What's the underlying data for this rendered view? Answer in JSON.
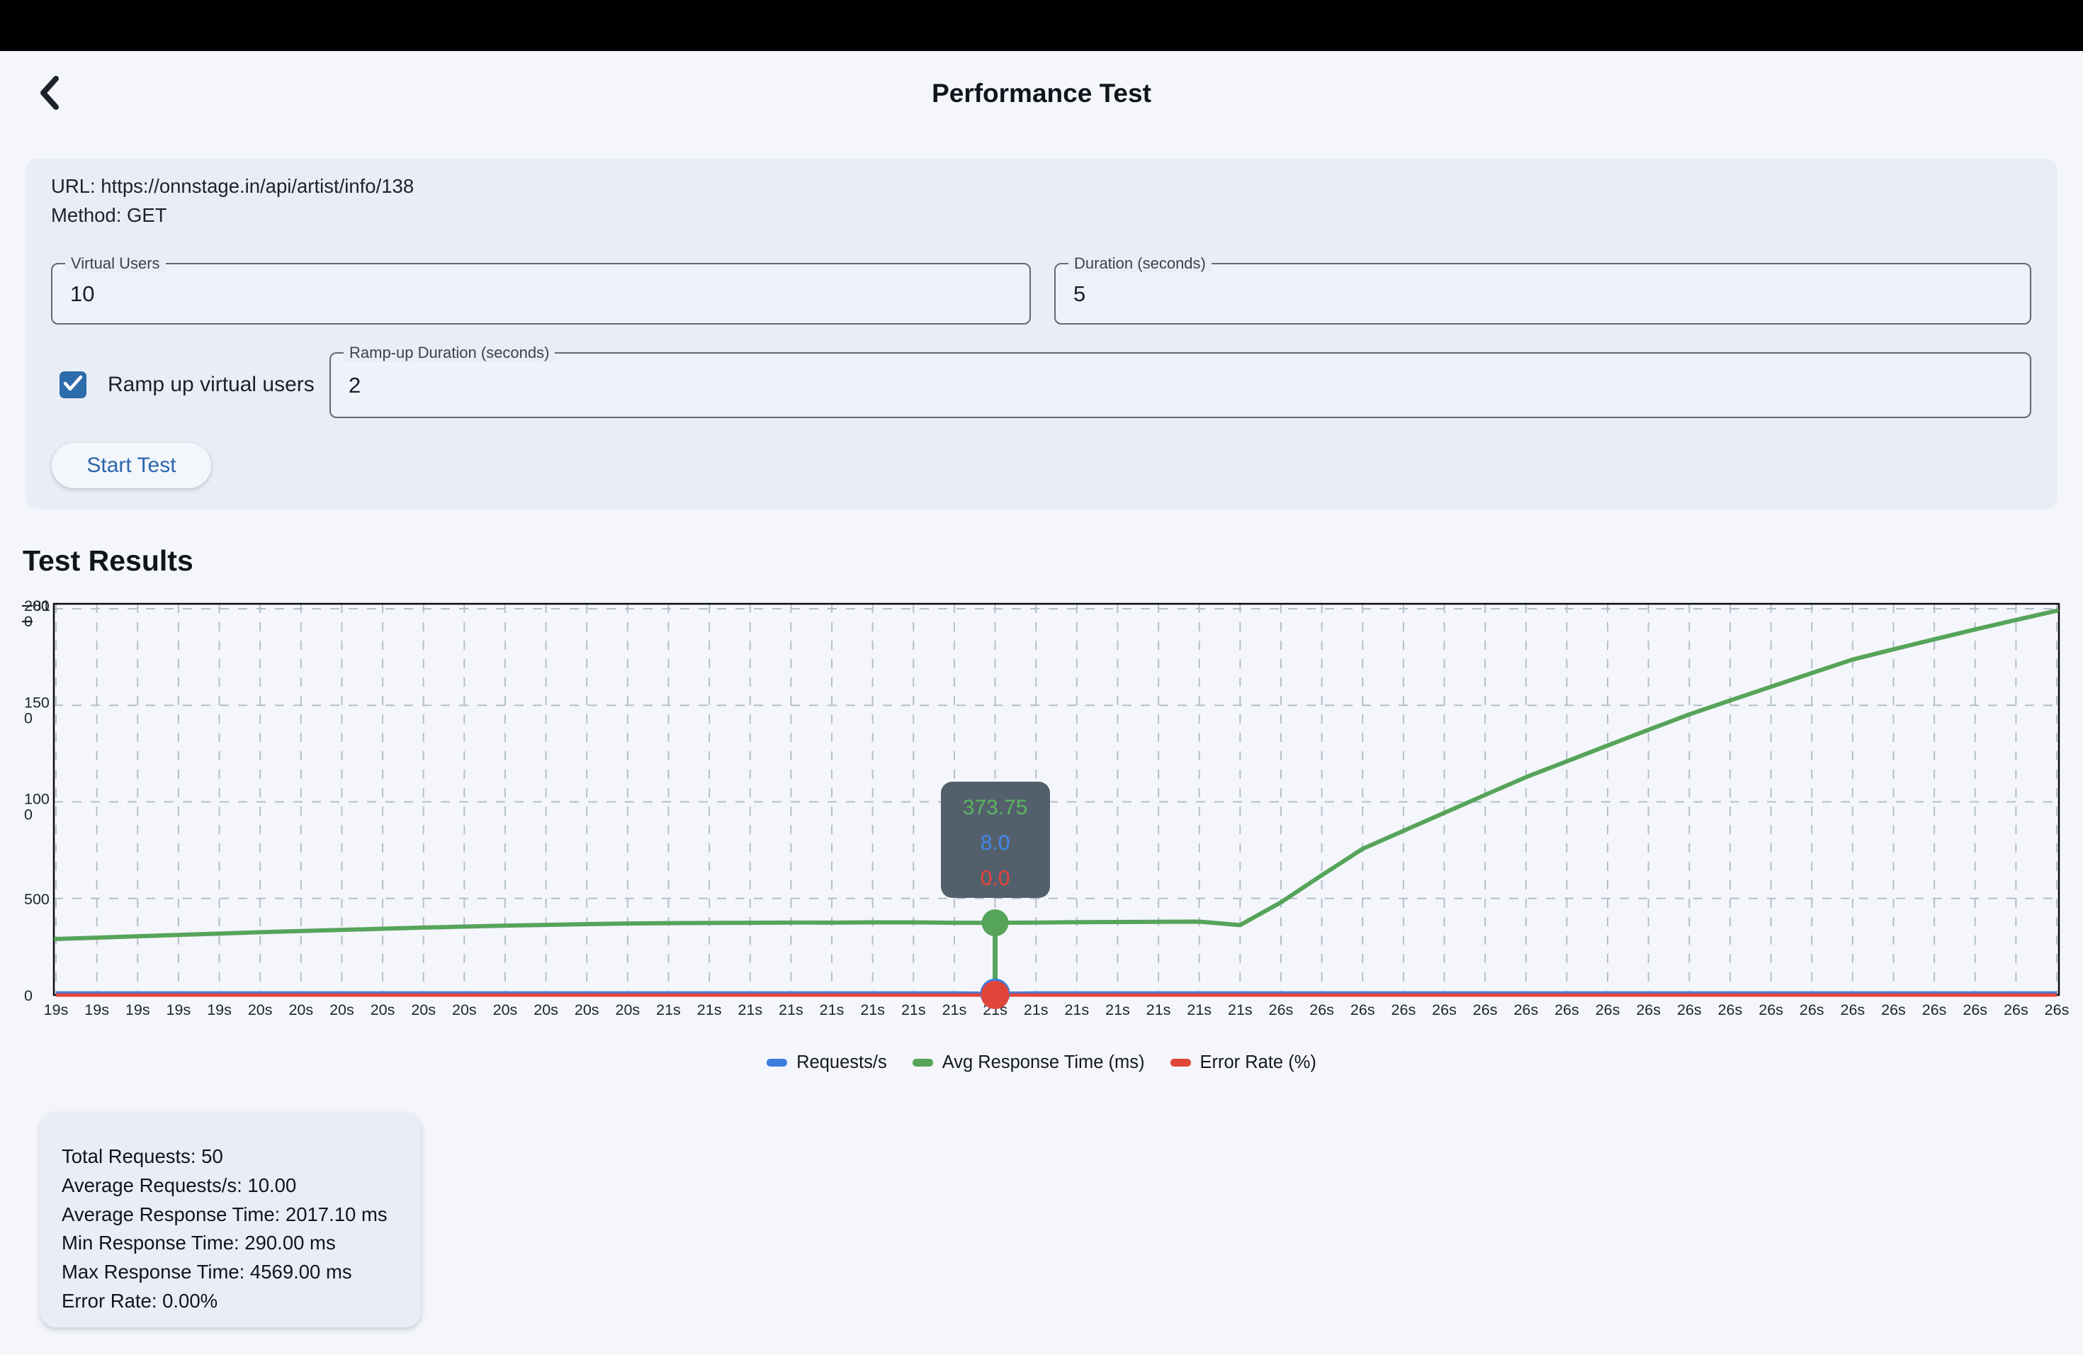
{
  "header": {
    "title": "Performance Test"
  },
  "form": {
    "url_line": "URL: https://onnstage.in/api/artist/info/138",
    "method_line": "Method: GET",
    "virtual_users": {
      "label": "Virtual Users",
      "value": "10"
    },
    "duration": {
      "label": "Duration (seconds)",
      "value": "5"
    },
    "ramp_up_duration": {
      "label": "Ramp-up Duration (seconds)",
      "value": "2"
    },
    "ramp_up_checkbox": {
      "label": "Ramp up virtual users",
      "checked": true
    },
    "start_button_label": "Start Test"
  },
  "results": {
    "heading": "Test Results",
    "summary_lines": [
      "Total Requests: 50",
      "Average Requests/s: 10.00",
      "Average Response Time: 2017.10 ms",
      "Min Response Time: 290.00 ms",
      "Max Response Time: 4569.00 ms",
      "Error Rate: 0.00%"
    ]
  },
  "chart_data": {
    "type": "line",
    "title": "",
    "x_labels": [
      "19s",
      "19s",
      "19s",
      "19s",
      "19s",
      "20s",
      "20s",
      "20s",
      "20s",
      "20s",
      "20s",
      "20s",
      "20s",
      "20s",
      "20s",
      "21s",
      "21s",
      "21s",
      "21s",
      "21s",
      "21s",
      "21s",
      "21s",
      "21s",
      "21s",
      "21s",
      "21s",
      "21s",
      "21s",
      "21s",
      "26s",
      "26s",
      "26s",
      "26s",
      "26s",
      "26s",
      "26s",
      "26s",
      "26s",
      "26s",
      "26s",
      "26s",
      "26s",
      "26s",
      "26s",
      "26s",
      "26s",
      "26s",
      "26s",
      "26s"
    ],
    "y_axis": {
      "max": 2000,
      "ticks": [
        0,
        500,
        1000,
        1500,
        2000
      ],
      "overlay_top_labels": [
        "8",
        "1"
      ],
      "grid": "dashed"
    },
    "series": [
      {
        "name": "Requests/s",
        "color": "#3c7ee0",
        "values": [
          10,
          10,
          10,
          10,
          10,
          10,
          10,
          10,
          10,
          10,
          10,
          10,
          10,
          10,
          10,
          10,
          10,
          10,
          10,
          10,
          10,
          10,
          10,
          8,
          10,
          10,
          10,
          10,
          10,
          10,
          10,
          10,
          10,
          10,
          10,
          10,
          10,
          10,
          10,
          10,
          10,
          10,
          10,
          10,
          10,
          10,
          10,
          10,
          10,
          10
        ]
      },
      {
        "name": "Avg Response Time (ms)",
        "color": "#56a45a",
        "values": [
          290,
          297,
          304,
          311,
          318,
          325,
          331,
          337,
          343,
          349,
          354,
          359,
          363,
          367,
          370,
          372,
          373,
          374,
          375,
          375,
          376,
          376,
          374,
          373.75,
          375,
          377,
          378,
          379,
          380,
          362,
          480,
          620,
          757,
          850,
          943,
          1036,
          1128,
          1210,
          1292,
          1373,
          1453,
          1525,
          1596,
          1667,
          1737,
          1790,
          1842,
          1893,
          1942,
          1990
        ]
      },
      {
        "name": "Error Rate (%)",
        "color": "#e0453a",
        "values": [
          0,
          0,
          0,
          0,
          0,
          0,
          0,
          0,
          0,
          0,
          0,
          0,
          0,
          0,
          0,
          0,
          0,
          0,
          0,
          0,
          0,
          0,
          0,
          0,
          0,
          0,
          0,
          0,
          0,
          0,
          0,
          0,
          0,
          0,
          0,
          0,
          0,
          0,
          0,
          0,
          0,
          0,
          0,
          0,
          0,
          0,
          0,
          0,
          0,
          0
        ]
      }
    ],
    "selected_point": {
      "index": 23,
      "x_label": "21s",
      "tooltip_values": [
        {
          "text": "373.75",
          "color": "#5cb45e"
        },
        {
          "text": "8.0",
          "color": "#4289ea"
        },
        {
          "text": "0.0",
          "color": "#e84238"
        }
      ]
    },
    "legend": [
      "Requests/s",
      "Avg Response Time (ms)",
      "Error Rate (%)"
    ],
    "legend_position": "bottom"
  }
}
